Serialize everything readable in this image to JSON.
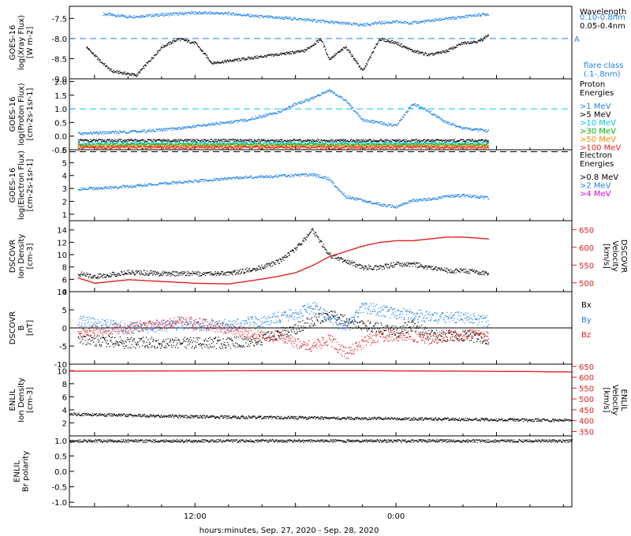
{
  "colors": {
    "black": "#000000",
    "blue": "#1e82e6",
    "cyan": "#00c8e6",
    "green": "#00b000",
    "orange": "#f08c00",
    "red": "#e11e1e",
    "magenta": "#e600e6"
  },
  "x_axis": {
    "label": "hours:minutes, Sep. 27, 2020 - Sep. 28, 2020",
    "ticks": [
      {
        "value": 12,
        "label": "12:00"
      },
      {
        "value": 24,
        "label": "0:00"
      }
    ],
    "xlim": [
      4.5,
      34.5
    ]
  },
  "chart_data": [
    {
      "type": "scatter",
      "panel": "goes-xray",
      "ylabel": [
        "GOES-16",
        "log(Xray Flux)",
        "[W m-2]"
      ],
      "ylim": [
        -9.0,
        -7.2
      ],
      "yticks": [
        -7.5,
        -8.0,
        -8.5,
        -9.0
      ],
      "ytick_labels": [
        "-7.5",
        "-8.0",
        "-8.5",
        "-9.0"
      ],
      "reference_line": {
        "y": -8.0,
        "label": "A",
        "style": "dashed"
      },
      "legend_title": "Wavelength",
      "legend": [
        "0.10-0.8nm",
        "0.05-0.4nm"
      ],
      "legend_note": [
        "flare class",
        "(.1-.8nm)"
      ],
      "series": [
        {
          "name": "0.10-0.8nm",
          "color_key": "blue",
          "x": [
            6.5,
            8,
            10,
            12,
            14,
            16,
            18,
            20,
            21,
            22,
            23,
            24,
            25,
            26,
            26.5,
            27.5,
            28.5,
            29.5
          ],
          "y": [
            -7.38,
            -7.45,
            -7.4,
            -7.35,
            -7.37,
            -7.45,
            -7.5,
            -7.58,
            -7.62,
            -7.65,
            -7.6,
            -7.58,
            -7.6,
            -7.55,
            -7.52,
            -7.48,
            -7.42,
            -7.38
          ]
        },
        {
          "name": "0.05-0.4nm",
          "color_key": "black",
          "x": [
            5.5,
            6.2,
            7,
            8.5,
            10,
            11,
            12,
            13,
            18.5,
            19.5,
            20,
            21,
            22,
            23,
            24,
            25,
            26,
            27,
            28,
            29,
            29.5
          ],
          "y": [
            -8.2,
            -8.5,
            -8.8,
            -8.9,
            -8.2,
            -8.0,
            -8.1,
            -8.6,
            -8.3,
            -8.0,
            -8.5,
            -8.2,
            -8.8,
            -8.0,
            -8.1,
            -8.3,
            -8.4,
            -8.3,
            -8.1,
            -8.05,
            -7.9
          ]
        }
      ]
    },
    {
      "type": "scatter",
      "panel": "goes-proton",
      "ylabel": [
        "GOES-16",
        "log(Proton Flux)",
        "[cm-2s-1sr-1]"
      ],
      "ylim": [
        -0.5,
        2.1
      ],
      "yticks": [
        2.0,
        1.5,
        1.0,
        0.5,
        0.0,
        -0.5
      ],
      "ytick_labels": [
        "2.0",
        "1.5",
        "1.0",
        "0.5",
        "0.0",
        "-0.5"
      ],
      "reference_line": {
        "y": 1.0,
        "style": "dashed"
      },
      "legend_title": [
        "Proton",
        "Energies"
      ],
      "legend": [
        ">1 MeV",
        ">5 MeV",
        ">10 MeV",
        ">30 MeV",
        ">50 MeV",
        ">100 MeV"
      ],
      "series": [
        {
          "name": ">1 MeV",
          "color_key": "blue",
          "x": [
            5,
            7,
            9,
            11,
            13,
            15,
            17,
            18,
            19,
            20,
            21,
            22,
            23,
            24,
            25,
            26,
            27,
            28,
            29.5
          ],
          "y": [
            0.1,
            0.15,
            0.2,
            0.3,
            0.45,
            0.6,
            0.9,
            1.2,
            1.4,
            1.7,
            1.3,
            0.6,
            0.5,
            0.4,
            1.2,
            0.9,
            0.5,
            0.3,
            0.2
          ]
        },
        {
          "name": ">5 MeV",
          "color_key": "black",
          "x": [
            5,
            29.5
          ],
          "y": [
            -0.15,
            -0.15
          ]
        },
        {
          "name": ">10 MeV",
          "color_key": "cyan",
          "x": [
            5,
            29.5
          ],
          "y": [
            -0.25,
            -0.25
          ]
        },
        {
          "name": ">30 MeV",
          "color_key": "green",
          "x": [
            5,
            29.5
          ],
          "y": [
            -0.3,
            -0.3
          ]
        },
        {
          "name": ">50 MeV",
          "color_key": "orange",
          "x": [
            5,
            29.5
          ],
          "y": [
            -0.35,
            -0.35
          ]
        },
        {
          "name": ">100 MeV",
          "color_key": "red",
          "x": [
            5,
            29.5
          ],
          "y": [
            -0.4,
            -0.4
          ]
        }
      ]
    },
    {
      "type": "scatter",
      "panel": "goes-electron",
      "ylabel": [
        "GOES-16",
        "log(Electron Flux)",
        "[cm-2s-1sr-1]"
      ],
      "ylim": [
        0.5,
        6.0
      ],
      "yticks": [
        6,
        5,
        4,
        3,
        2,
        1
      ],
      "ytick_labels": [
        "6",
        "5",
        "4",
        "3",
        "2",
        "1"
      ],
      "reference_line": {
        "y": 5.85,
        "style": "dashed"
      },
      "legend_title": [
        "Electron",
        "Energies"
      ],
      "legend": [
        ">0.8 MeV",
        ">2 MeV",
        ">4 MeV"
      ],
      "series": [
        {
          "name": ">2 MeV",
          "color_key": "blue",
          "x": [
            5,
            7,
            9,
            11,
            13,
            15,
            17,
            19,
            20,
            20.5,
            21,
            22,
            23,
            24,
            25,
            26,
            27,
            28,
            29.5
          ],
          "y": [
            3.0,
            3.1,
            3.3,
            3.5,
            3.7,
            3.9,
            4.0,
            4.1,
            3.8,
            3.0,
            2.4,
            2.1,
            1.8,
            1.6,
            2.1,
            2.2,
            2.4,
            2.5,
            2.3
          ]
        }
      ]
    },
    {
      "type": "scatter",
      "panel": "dscovr-density",
      "ylabel": [
        "DSCOVR",
        "Ion Density",
        "[cm-3]"
      ],
      "ylim": [
        4,
        15.5
      ],
      "yticks": [
        14,
        12,
        10,
        8,
        6,
        4
      ],
      "ytick_labels": [
        "14",
        "12",
        "10",
        "8",
        "6",
        "4"
      ],
      "y2label": [
        "DSCOVR",
        "Velocity",
        "[km/s]"
      ],
      "y2lim": [
        475,
        675
      ],
      "y2ticks": [
        650,
        600,
        550,
        500
      ],
      "y2tick_labels": [
        "650",
        "600",
        "550",
        "500"
      ],
      "series": [
        {
          "name": "Density",
          "color_key": "black",
          "x": [
            5,
            6,
            8,
            10,
            12,
            14,
            15,
            16,
            17,
            18,
            19,
            20,
            21,
            22,
            23,
            24,
            25,
            26,
            27,
            28,
            29.5
          ],
          "y": [
            7,
            6.5,
            7.2,
            7,
            7,
            7,
            7.5,
            8,
            9,
            11,
            14,
            10,
            9,
            8,
            8,
            8.5,
            8.5,
            8,
            7.5,
            7.5,
            7
          ]
        },
        {
          "name": "Velocity",
          "color_key": "red",
          "axis": "right",
          "x": [
            5,
            6,
            8,
            10,
            12,
            14,
            15,
            16,
            17,
            18,
            19,
            20,
            21,
            22,
            23,
            24,
            25,
            26,
            27,
            28,
            29.5
          ],
          "y": [
            515,
            500,
            510,
            505,
            500,
            498,
            505,
            512,
            520,
            530,
            550,
            575,
            590,
            605,
            615,
            620,
            620,
            625,
            630,
            630,
            625
          ]
        }
      ]
    },
    {
      "type": "scatter",
      "panel": "dscovr-b",
      "ylabel": [
        "DSCOVR",
        "B",
        "[nT]"
      ],
      "ylim": [
        -10,
        10
      ],
      "yticks": [
        10,
        5,
        0,
        -5,
        -10
      ],
      "ytick_labels": [
        "10",
        "5",
        "0",
        "-5",
        "-10"
      ],
      "reference_line": {
        "y": 0,
        "style": "solid"
      },
      "legend": [
        "Bx",
        "By",
        "Bz"
      ],
      "series": [
        {
          "name": "Bx",
          "color_key": "black",
          "x": [
            5,
            8,
            11,
            14,
            16,
            18,
            19,
            20,
            21,
            22,
            23,
            24,
            25,
            26,
            27,
            28,
            29.5
          ],
          "y": [
            -3,
            -4,
            -4,
            -4,
            -3,
            0,
            2,
            4,
            2,
            1,
            0,
            -1,
            1,
            -2,
            -2,
            -2,
            -3
          ]
        },
        {
          "name": "By",
          "color_key": "blue",
          "x": [
            5,
            8,
            11,
            14,
            16,
            17,
            18,
            19,
            20,
            21,
            22,
            23,
            24,
            25,
            26,
            27,
            28,
            29.5
          ],
          "y": [
            2,
            0,
            1,
            1,
            2,
            3,
            4,
            6,
            3,
            0,
            6,
            5,
            4,
            4,
            3,
            3,
            3,
            2
          ]
        },
        {
          "name": "Bz",
          "color_key": "red",
          "x": [
            5,
            8,
            11,
            14,
            16,
            17,
            18,
            19,
            20,
            21,
            22,
            23,
            24,
            25,
            26,
            27,
            28,
            29.5
          ],
          "y": [
            -1,
            0,
            2,
            0,
            -2,
            -2,
            -4,
            -5,
            -3,
            -7,
            -4,
            -2,
            -2,
            -2,
            -3,
            -2,
            -2,
            -2
          ]
        }
      ]
    },
    {
      "type": "scatter",
      "panel": "enlil-density",
      "ylabel": [
        "ENLIL",
        "Ion Density",
        "[cm-3]"
      ],
      "ylim": [
        0,
        11
      ],
      "yticks": [
        10,
        8,
        6,
        4,
        2
      ],
      "ytick_labels": [
        "10",
        "8",
        "6",
        "4",
        "2"
      ],
      "y2label": [
        "ENLIL",
        "Velocity",
        "[km/s]"
      ],
      "y2lim": [
        330,
        660
      ],
      "y2ticks": [
        650,
        600,
        550,
        500,
        450,
        400,
        350
      ],
      "y2tick_labels": [
        "650",
        "600",
        "550",
        "500",
        "450",
        "400",
        "350"
      ],
      "series": [
        {
          "name": "Density",
          "color_key": "black",
          "x": [
            4.5,
            8,
            12,
            16,
            20,
            24,
            28,
            32,
            34.5
          ],
          "y": [
            3.4,
            3.2,
            3.0,
            2.9,
            2.8,
            2.7,
            2.6,
            2.5,
            2.45
          ]
        },
        {
          "name": "Velocity",
          "color_key": "red",
          "axis": "right",
          "x": [
            4.5,
            10,
            16,
            22,
            28,
            32,
            34.5
          ],
          "y": [
            630,
            631,
            632,
            632,
            630,
            628,
            626
          ]
        }
      ]
    },
    {
      "type": "scatter",
      "panel": "enlil-polarity",
      "ylabel": [
        "ENLIL",
        "Br polarity"
      ],
      "ylim": [
        -1.15,
        1.15
      ],
      "yticks": [
        1.0,
        0.5,
        0.0,
        -0.5,
        -1.0
      ],
      "ytick_labels": [
        "1.0",
        "0.5",
        "0.0",
        "-0.5",
        "-1.0"
      ],
      "series": [
        {
          "name": "Br polarity",
          "color_key": "black",
          "x": [
            4.5,
            34.5
          ],
          "y": [
            1.0,
            1.0
          ]
        }
      ]
    }
  ]
}
